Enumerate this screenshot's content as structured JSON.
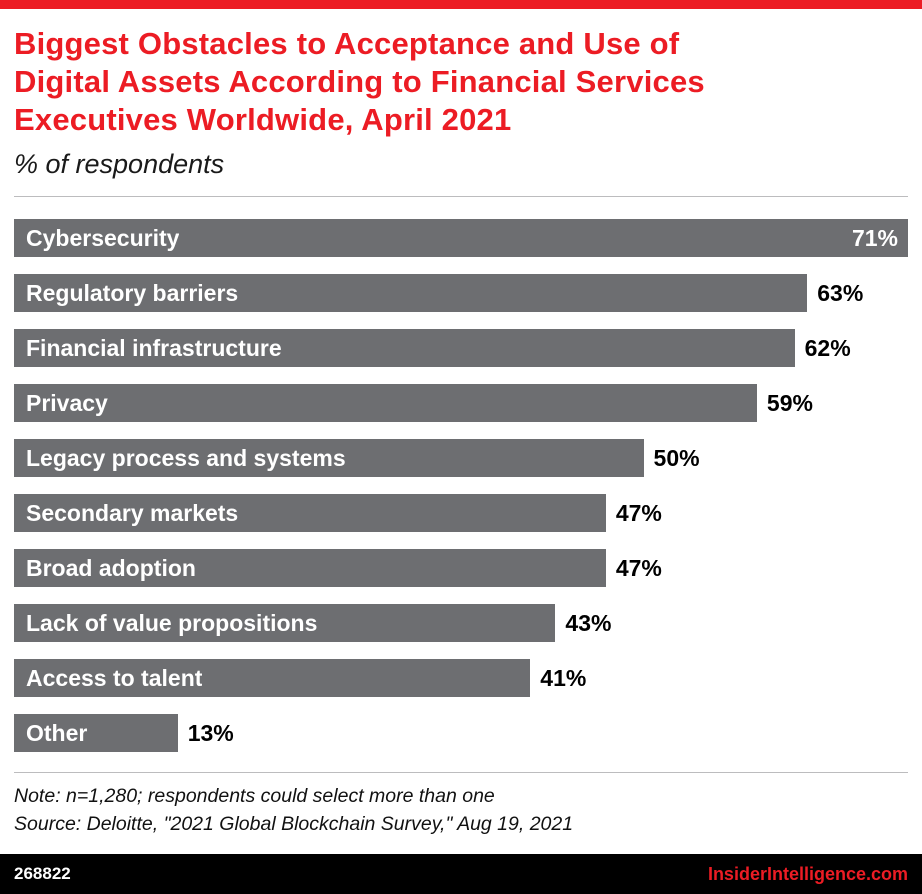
{
  "title": {
    "lines": [
      "Biggest Obstacles to Acceptance and Use of",
      "Digital Assets According to Financial Services",
      "Executives Worldwide, April 2021"
    ],
    "subtitle": "% of respondents"
  },
  "chart_data": {
    "type": "bar",
    "orientation": "horizontal",
    "unit": "%",
    "categories": [
      "Cybersecurity",
      "Regulatory barriers",
      "Financial infrastructure",
      "Privacy",
      "Legacy process and systems",
      "Secondary markets",
      "Broad adoption",
      "Lack of value propositions",
      "Access to talent",
      "Other"
    ],
    "values": [
      71,
      63,
      62,
      59,
      50,
      47,
      47,
      43,
      41,
      13
    ],
    "value_labels": [
      "71%",
      "63%",
      "62%",
      "59%",
      "50%",
      "47%",
      "47%",
      "43%",
      "41%",
      "13%"
    ],
    "xlim": [
      0,
      71
    ],
    "grid": false,
    "legend": "none",
    "bar_color": "#6d6e71",
    "bar_label_color": "#ffffff",
    "value_label_color_outside": "#000000",
    "value_label_color_inside": "#ffffff"
  },
  "notes": [
    "Note: n=1,280; respondents could select more than one",
    "Source: Deloitte, \"2021 Global Blockchain Survey,\" Aug 19, 2021"
  ],
  "footer": {
    "chart_id": "268822",
    "site": "InsiderIntelligence.com"
  },
  "colors": {
    "accent_red": "#ec1c24",
    "bar_gray": "#6d6e71",
    "footer_bg": "#000000"
  }
}
